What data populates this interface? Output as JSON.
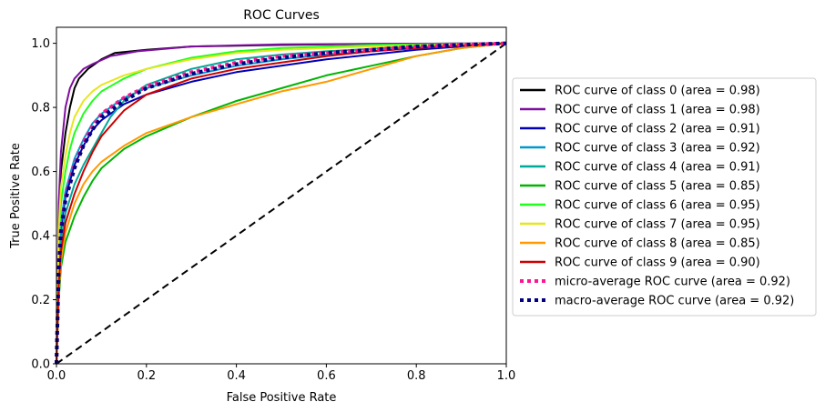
{
  "chart_data": {
    "type": "line",
    "title": "ROC Curves",
    "xlabel": "False Positive Rate",
    "ylabel": "True Positive Rate",
    "xlim": [
      0.0,
      1.0
    ],
    "ylim": [
      0.0,
      1.05
    ],
    "x_ticks": [
      "0.0",
      "0.2",
      "0.4",
      "0.6",
      "0.8",
      "1.0"
    ],
    "y_ticks": [
      "0.0",
      "0.2",
      "0.4",
      "0.6",
      "0.8",
      "1.0"
    ],
    "grid": false,
    "legend_placement": "outside-right",
    "series": [
      {
        "name": "ROC curve of class 0 (area = 0.98)",
        "color": "#000000",
        "style": "solid",
        "points": [
          [
            0,
            0
          ],
          [
            0.005,
            0.45
          ],
          [
            0.01,
            0.6
          ],
          [
            0.02,
            0.72
          ],
          [
            0.03,
            0.8
          ],
          [
            0.04,
            0.86
          ],
          [
            0.05,
            0.89
          ],
          [
            0.07,
            0.92
          ],
          [
            0.1,
            0.95
          ],
          [
            0.13,
            0.97
          ],
          [
            0.2,
            0.98
          ],
          [
            0.3,
            0.99
          ],
          [
            0.5,
            0.995
          ],
          [
            0.7,
            0.998
          ],
          [
            1,
            1
          ]
        ]
      },
      {
        "name": "ROC curve of class 1 (area = 0.98)",
        "color": "#7f0f9f",
        "style": "solid",
        "points": [
          [
            0,
            0
          ],
          [
            0.005,
            0.5
          ],
          [
            0.01,
            0.66
          ],
          [
            0.02,
            0.8
          ],
          [
            0.03,
            0.86
          ],
          [
            0.04,
            0.89
          ],
          [
            0.06,
            0.92
          ],
          [
            0.08,
            0.935
          ],
          [
            0.12,
            0.96
          ],
          [
            0.18,
            0.975
          ],
          [
            0.3,
            0.99
          ],
          [
            0.5,
            0.997
          ],
          [
            1,
            1
          ]
        ]
      },
      {
        "name": "ROC curve of class 2 (area = 0.91)",
        "color": "#0000b4",
        "style": "solid",
        "points": [
          [
            0,
            0
          ],
          [
            0.005,
            0.3
          ],
          [
            0.01,
            0.42
          ],
          [
            0.02,
            0.52
          ],
          [
            0.04,
            0.62
          ],
          [
            0.06,
            0.68
          ],
          [
            0.08,
            0.73
          ],
          [
            0.1,
            0.76
          ],
          [
            0.15,
            0.81
          ],
          [
            0.2,
            0.84
          ],
          [
            0.3,
            0.88
          ],
          [
            0.4,
            0.91
          ],
          [
            0.5,
            0.93
          ],
          [
            0.6,
            0.95
          ],
          [
            0.7,
            0.965
          ],
          [
            0.8,
            0.98
          ],
          [
            0.9,
            0.99
          ],
          [
            1,
            1
          ]
        ]
      },
      {
        "name": "ROC curve of class 3 (area = 0.92)",
        "color": "#0099cc",
        "style": "solid",
        "points": [
          [
            0,
            0
          ],
          [
            0.005,
            0.32
          ],
          [
            0.01,
            0.44
          ],
          [
            0.02,
            0.54
          ],
          [
            0.04,
            0.64
          ],
          [
            0.06,
            0.7
          ],
          [
            0.08,
            0.75
          ],
          [
            0.1,
            0.78
          ],
          [
            0.15,
            0.83
          ],
          [
            0.2,
            0.86
          ],
          [
            0.3,
            0.9
          ],
          [
            0.4,
            0.93
          ],
          [
            0.5,
            0.95
          ],
          [
            0.6,
            0.965
          ],
          [
            0.7,
            0.975
          ],
          [
            0.8,
            0.985
          ],
          [
            1,
            1
          ]
        ]
      },
      {
        "name": "ROC curve of class 4 (area = 0.91)",
        "color": "#00a99a",
        "style": "solid",
        "points": [
          [
            0,
            0
          ],
          [
            0.005,
            0.28
          ],
          [
            0.01,
            0.38
          ],
          [
            0.02,
            0.47
          ],
          [
            0.04,
            0.56
          ],
          [
            0.06,
            0.62
          ],
          [
            0.08,
            0.67
          ],
          [
            0.1,
            0.72
          ],
          [
            0.12,
            0.77
          ],
          [
            0.15,
            0.82
          ],
          [
            0.2,
            0.87
          ],
          [
            0.3,
            0.92
          ],
          [
            0.4,
            0.95
          ],
          [
            0.5,
            0.965
          ],
          [
            0.6,
            0.975
          ],
          [
            0.8,
            0.99
          ],
          [
            1,
            1
          ]
        ]
      },
      {
        "name": "ROC curve of class 5 (area = 0.85)",
        "color": "#00b400",
        "style": "solid",
        "points": [
          [
            0,
            0
          ],
          [
            0.005,
            0.2
          ],
          [
            0.01,
            0.3
          ],
          [
            0.02,
            0.38
          ],
          [
            0.04,
            0.46
          ],
          [
            0.06,
            0.52
          ],
          [
            0.08,
            0.57
          ],
          [
            0.1,
            0.61
          ],
          [
            0.15,
            0.67
          ],
          [
            0.2,
            0.71
          ],
          [
            0.3,
            0.77
          ],
          [
            0.4,
            0.82
          ],
          [
            0.5,
            0.86
          ],
          [
            0.6,
            0.9
          ],
          [
            0.7,
            0.93
          ],
          [
            0.8,
            0.96
          ],
          [
            0.9,
            0.985
          ],
          [
            1,
            1
          ]
        ]
      },
      {
        "name": "ROC curve of class 6 (area = 0.95)",
        "color": "#1eff1e",
        "style": "solid",
        "points": [
          [
            0,
            0
          ],
          [
            0.005,
            0.38
          ],
          [
            0.01,
            0.5
          ],
          [
            0.02,
            0.6
          ],
          [
            0.03,
            0.67
          ],
          [
            0.04,
            0.72
          ],
          [
            0.06,
            0.78
          ],
          [
            0.08,
            0.82
          ],
          [
            0.1,
            0.85
          ],
          [
            0.15,
            0.89
          ],
          [
            0.2,
            0.92
          ],
          [
            0.3,
            0.955
          ],
          [
            0.4,
            0.975
          ],
          [
            0.5,
            0.985
          ],
          [
            0.7,
            0.995
          ],
          [
            1,
            1
          ]
        ]
      },
      {
        "name": "ROC curve of class 7 (area = 0.95)",
        "color": "#e6e61e",
        "style": "solid",
        "points": [
          [
            0,
            0
          ],
          [
            0.005,
            0.42
          ],
          [
            0.01,
            0.55
          ],
          [
            0.02,
            0.65
          ],
          [
            0.03,
            0.72
          ],
          [
            0.04,
            0.77
          ],
          [
            0.06,
            0.82
          ],
          [
            0.08,
            0.85
          ],
          [
            0.1,
            0.87
          ],
          [
            0.15,
            0.9
          ],
          [
            0.2,
            0.92
          ],
          [
            0.3,
            0.95
          ],
          [
            0.4,
            0.97
          ],
          [
            0.5,
            0.98
          ],
          [
            0.7,
            0.99
          ],
          [
            1,
            1
          ]
        ]
      },
      {
        "name": "ROC curve of class 8 (area = 0.85)",
        "color": "#ff9900",
        "style": "solid",
        "points": [
          [
            0,
            0
          ],
          [
            0.005,
            0.22
          ],
          [
            0.01,
            0.32
          ],
          [
            0.02,
            0.41
          ],
          [
            0.04,
            0.5
          ],
          [
            0.06,
            0.56
          ],
          [
            0.08,
            0.6
          ],
          [
            0.1,
            0.63
          ],
          [
            0.15,
            0.68
          ],
          [
            0.2,
            0.72
          ],
          [
            0.3,
            0.77
          ],
          [
            0.4,
            0.81
          ],
          [
            0.5,
            0.85
          ],
          [
            0.6,
            0.88
          ],
          [
            0.7,
            0.92
          ],
          [
            0.8,
            0.96
          ],
          [
            0.9,
            0.985
          ],
          [
            1,
            1
          ]
        ]
      },
      {
        "name": "ROC curve of class 9 (area = 0.90)",
        "color": "#cc0000",
        "style": "solid",
        "points": [
          [
            0,
            0
          ],
          [
            0.005,
            0.25
          ],
          [
            0.01,
            0.35
          ],
          [
            0.02,
            0.44
          ],
          [
            0.04,
            0.53
          ],
          [
            0.06,
            0.6
          ],
          [
            0.08,
            0.66
          ],
          [
            0.1,
            0.71
          ],
          [
            0.15,
            0.79
          ],
          [
            0.2,
            0.84
          ],
          [
            0.3,
            0.89
          ],
          [
            0.4,
            0.92
          ],
          [
            0.5,
            0.94
          ],
          [
            0.6,
            0.96
          ],
          [
            0.7,
            0.975
          ],
          [
            0.8,
            0.985
          ],
          [
            1,
            1
          ]
        ]
      },
      {
        "name": "micro-average ROC curve (area = 0.92)",
        "color": "#ff1493",
        "style": "dotted",
        "points": [
          [
            0,
            0
          ],
          [
            0.005,
            0.3
          ],
          [
            0.01,
            0.42
          ],
          [
            0.02,
            0.52
          ],
          [
            0.04,
            0.62
          ],
          [
            0.06,
            0.69
          ],
          [
            0.08,
            0.74
          ],
          [
            0.1,
            0.78
          ],
          [
            0.15,
            0.83
          ],
          [
            0.2,
            0.865
          ],
          [
            0.3,
            0.91
          ],
          [
            0.4,
            0.94
          ],
          [
            0.5,
            0.96
          ],
          [
            0.6,
            0.97
          ],
          [
            0.7,
            0.98
          ],
          [
            0.8,
            0.99
          ],
          [
            1,
            1
          ]
        ]
      },
      {
        "name": "macro-average ROC curve (area = 0.92)",
        "color": "#000080",
        "style": "dotted",
        "points": [
          [
            0,
            0
          ],
          [
            0.005,
            0.29
          ],
          [
            0.01,
            0.41
          ],
          [
            0.02,
            0.51
          ],
          [
            0.04,
            0.61
          ],
          [
            0.06,
            0.68
          ],
          [
            0.08,
            0.73
          ],
          [
            0.1,
            0.77
          ],
          [
            0.15,
            0.82
          ],
          [
            0.2,
            0.86
          ],
          [
            0.3,
            0.905
          ],
          [
            0.4,
            0.935
          ],
          [
            0.5,
            0.955
          ],
          [
            0.6,
            0.97
          ],
          [
            0.7,
            0.98
          ],
          [
            0.8,
            0.99
          ],
          [
            1,
            1
          ]
        ]
      }
    ],
    "reference_line": {
      "points": [
        [
          0,
          0
        ],
        [
          1,
          1
        ]
      ],
      "color": "#000000",
      "style": "dashed"
    }
  }
}
